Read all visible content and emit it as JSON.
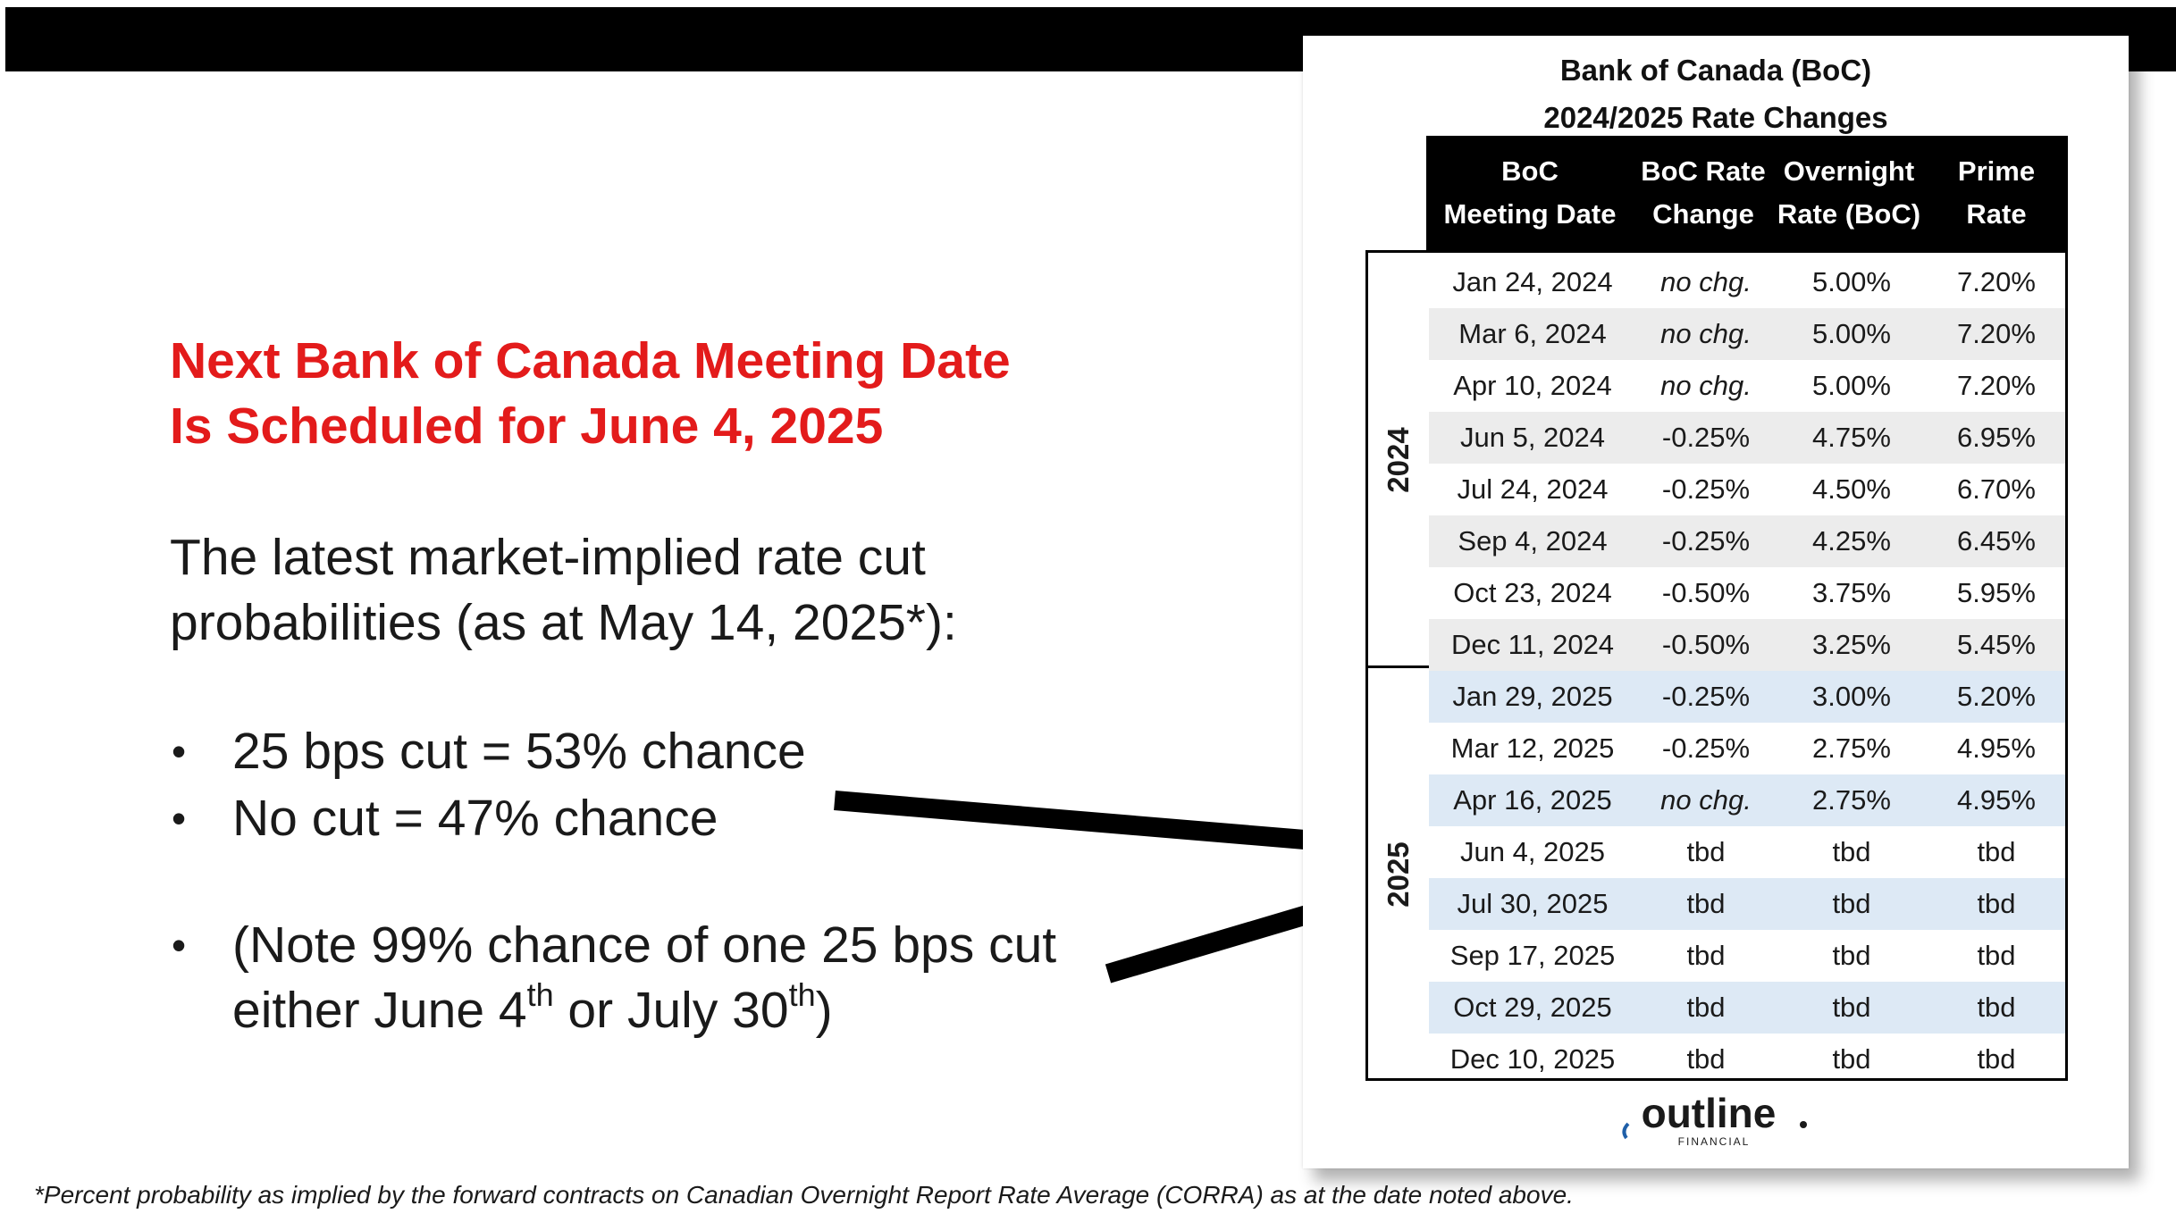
{
  "headline": {
    "line1": "Next Bank of Canada Meeting Date",
    "line2": "Is Scheduled for June 4, 2025"
  },
  "intro": {
    "line1": "The latest market-implied rate cut",
    "line2": "probabilities (as at May 14, 2025*):"
  },
  "bullets": [
    "25 bps cut = 53% chance",
    "No cut = 47% chance"
  ],
  "note": {
    "line1": "(Note 99% chance of one 25 bps cut",
    "line2_prefix": "either June 4",
    "sup1": "th",
    "line2_mid": " or July 30",
    "sup2": "th",
    "line2_suffix": ")"
  },
  "table": {
    "title_line1": "Bank of Canada (BoC)",
    "title_line2": "2024/2025 Rate Changes",
    "headers": [
      [
        "BoC",
        "Meeting Date"
      ],
      [
        "BoC Rate",
        "Change"
      ],
      [
        "Overnight",
        "Rate (BoC)"
      ],
      [
        "Prime",
        "Rate"
      ]
    ],
    "groups": [
      {
        "year": "2024",
        "rows": [
          [
            "Jan 24, 2024",
            "no chg.",
            "5.00%",
            "7.20%"
          ],
          [
            "Mar 6, 2024",
            "no chg.",
            "5.00%",
            "7.20%"
          ],
          [
            "Apr 10, 2024",
            "no chg.",
            "5.00%",
            "7.20%"
          ],
          [
            "Jun 5, 2024",
            "-0.25%",
            "4.75%",
            "6.95%"
          ],
          [
            "Jul 24, 2024",
            "-0.25%",
            "4.50%",
            "6.70%"
          ],
          [
            "Sep 4, 2024",
            "-0.25%",
            "4.25%",
            "6.45%"
          ],
          [
            "Oct 23, 2024",
            "-0.50%",
            "3.75%",
            "5.95%"
          ],
          [
            "Dec 11, 2024",
            "-0.50%",
            "3.25%",
            "5.45%"
          ]
        ]
      },
      {
        "year": "2025",
        "rows": [
          [
            "Jan 29, 2025",
            "-0.25%",
            "3.00%",
            "5.20%"
          ],
          [
            "Mar 12, 2025",
            "-0.25%",
            "2.75%",
            "4.95%"
          ],
          [
            "Apr 16, 2025",
            "no chg.",
            "2.75%",
            "4.95%"
          ],
          [
            "Jun 4, 2025",
            "tbd",
            "tbd",
            "tbd"
          ],
          [
            "Jul 30, 2025",
            "tbd",
            "tbd",
            "tbd"
          ],
          [
            "Sep 17, 2025",
            "tbd",
            "tbd",
            "tbd"
          ],
          [
            "Oct 29, 2025",
            "tbd",
            "tbd",
            "tbd"
          ],
          [
            "Dec 10, 2025",
            "tbd",
            "tbd",
            "tbd"
          ]
        ]
      }
    ]
  },
  "logo": {
    "wordmark": "outline",
    "sub": "FINANCIAL"
  },
  "footnote": "*Percent probability as implied by the forward contracts on Canadian Overnight Report Rate Average (CORRA) as at the date noted above.",
  "colors": {
    "headline": "#e31b1b",
    "row_shade_2024": "#ececec",
    "row_shade_2025": "#dde9f5",
    "logo_blue": "#1f5fa8"
  }
}
